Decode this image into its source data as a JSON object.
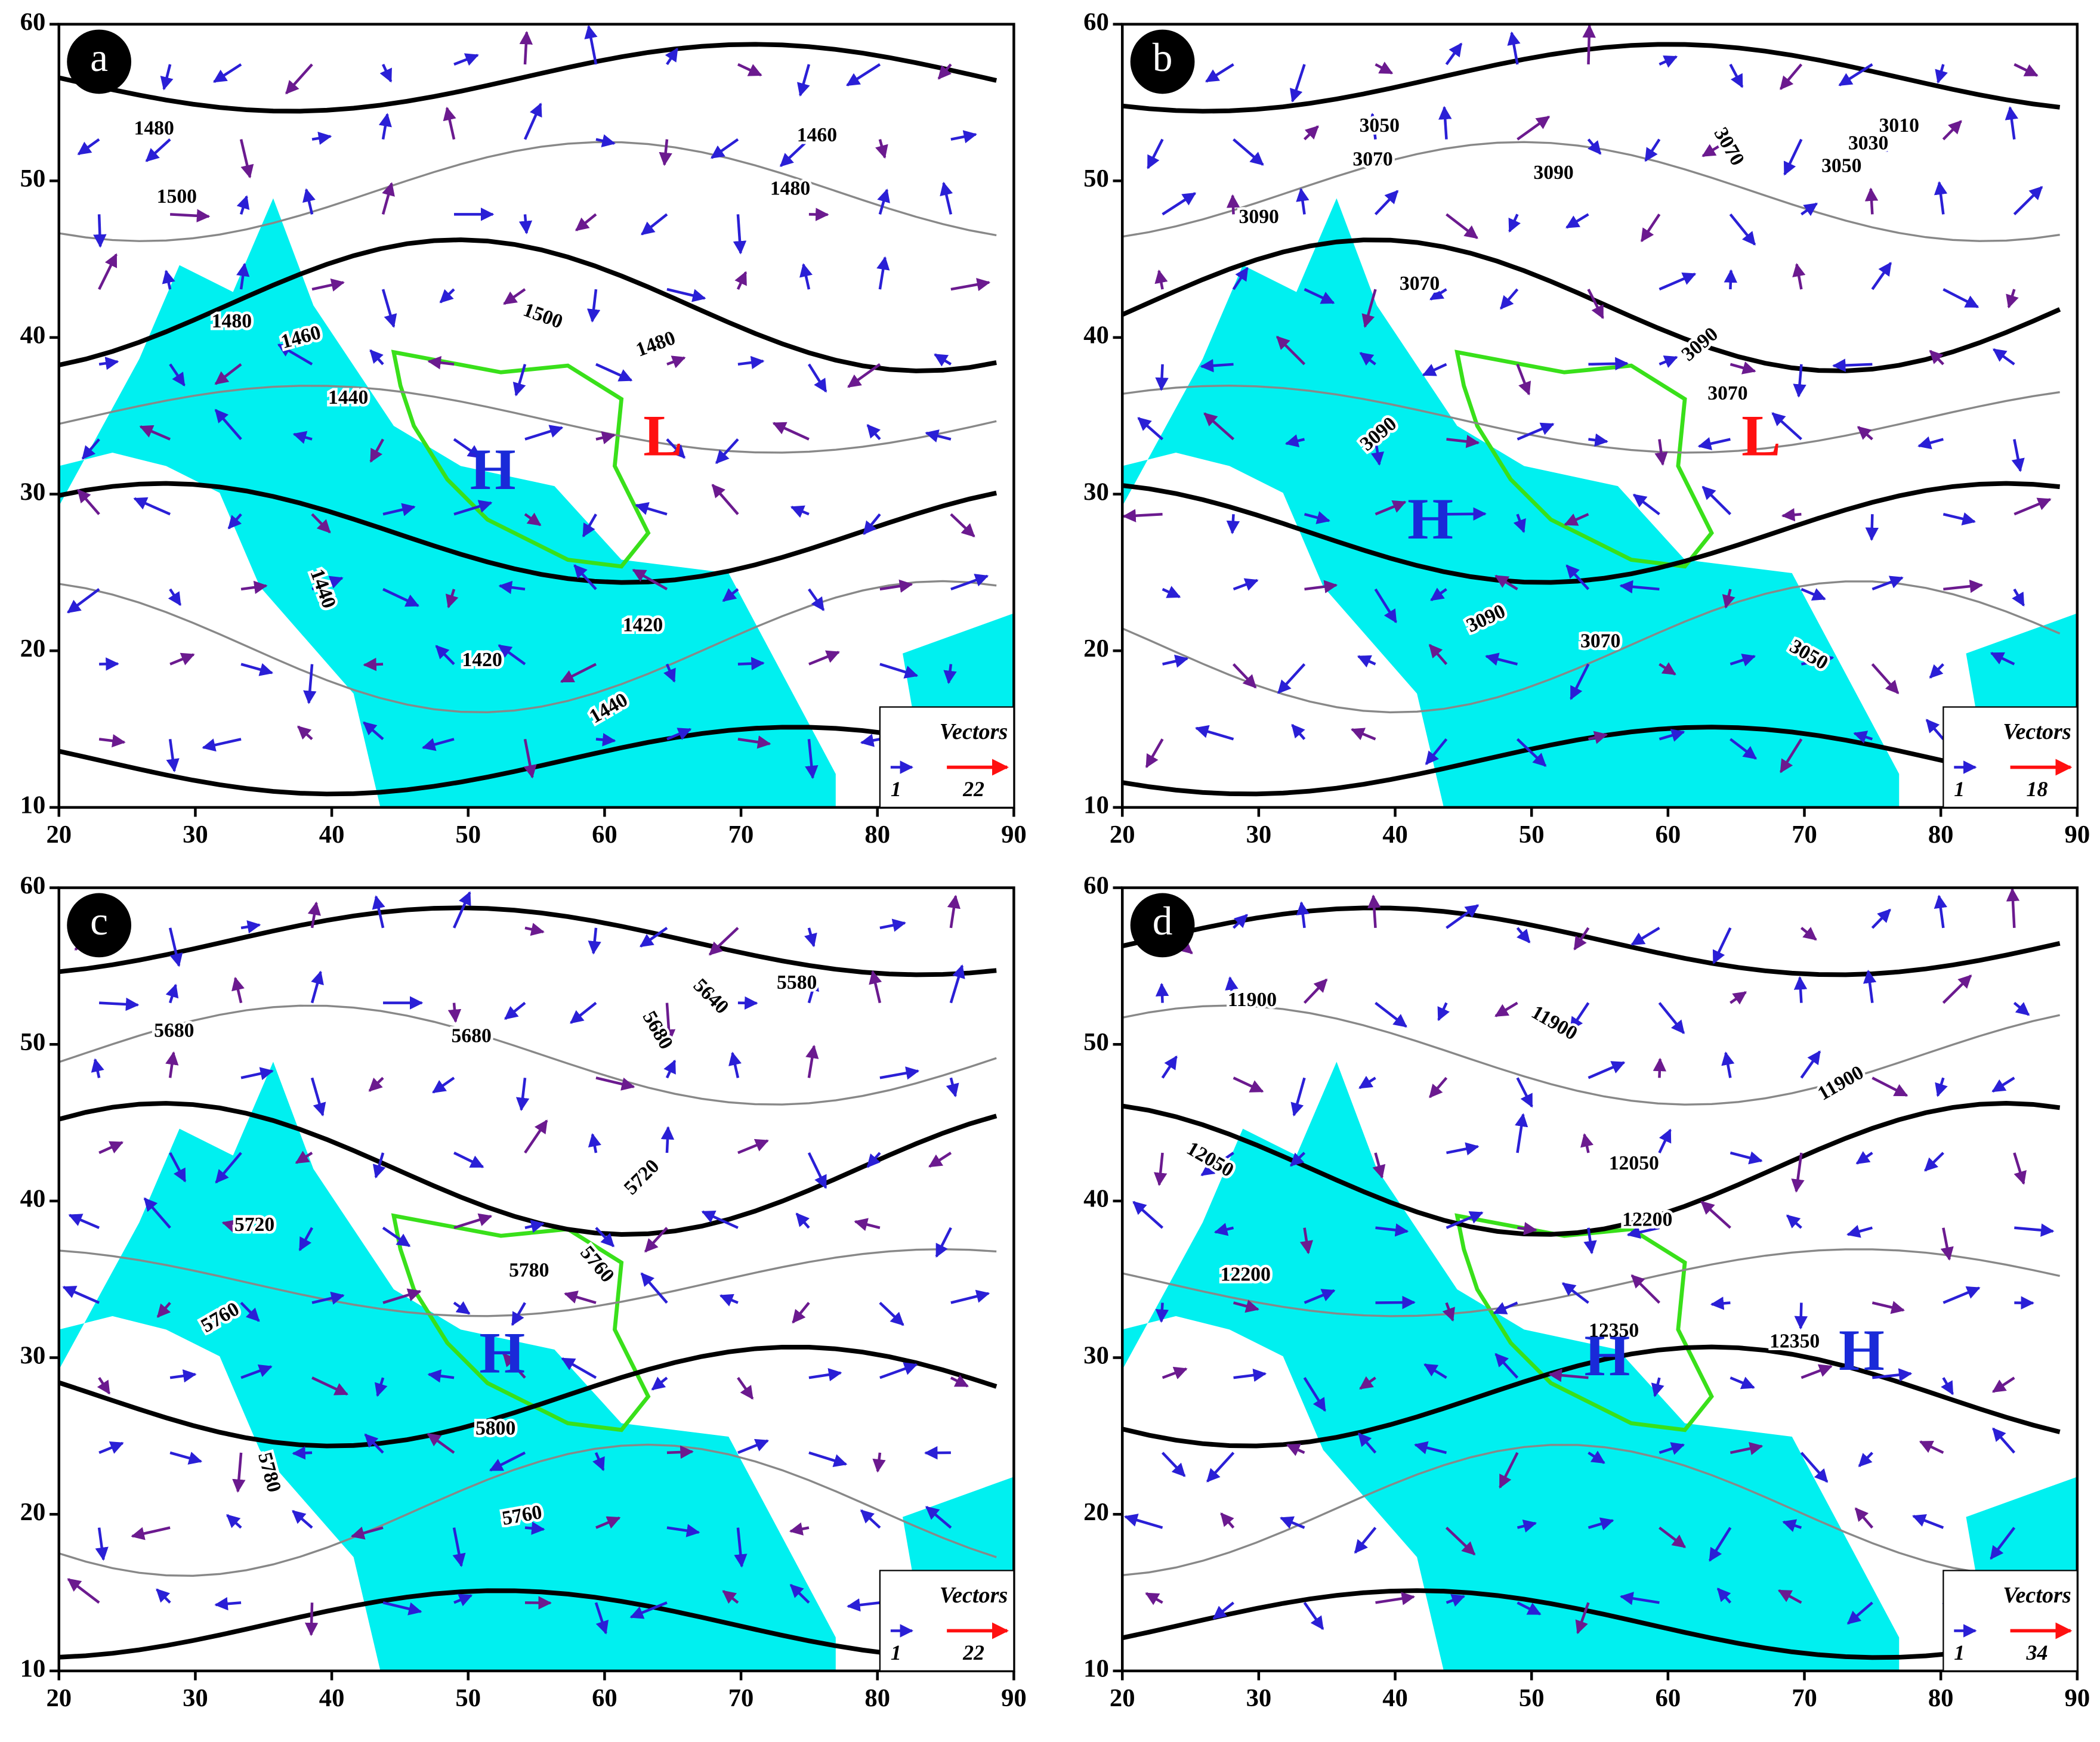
{
  "panels": [
    {
      "label": "a",
      "xlim": [
        20,
        90
      ],
      "ylim": [
        10,
        60
      ],
      "xticks": [
        20,
        30,
        40,
        50,
        60,
        70,
        80,
        90
      ],
      "yticks": [
        10,
        20,
        30,
        40,
        50,
        60
      ],
      "contour_labels": [
        1480,
        1460,
        1500,
        1480,
        1480,
        1500,
        1460,
        1480,
        1440,
        1440,
        1420,
        1420,
        1440
      ],
      "centers": [
        "H",
        "L"
      ],
      "legend": {
        "title": "Vectors",
        "small": 1,
        "large": 22
      }
    },
    {
      "label": "b",
      "xlim": [
        20,
        90
      ],
      "ylim": [
        10,
        60
      ],
      "xticks": [
        20,
        30,
        40,
        50,
        60,
        70,
        80,
        90
      ],
      "yticks": [
        10,
        20,
        30,
        40,
        50,
        60
      ],
      "contour_labels": [
        3050,
        3070,
        3010,
        3030,
        3050,
        3070,
        3090,
        3090,
        3070,
        3090,
        3070,
        3090,
        3090,
        3070,
        3050
      ],
      "centers": [
        "H",
        "L"
      ],
      "legend": {
        "title": "Vectors",
        "small": 1,
        "large": 18
      }
    },
    {
      "label": "c",
      "xlim": [
        20,
        90
      ],
      "ylim": [
        10,
        60
      ],
      "xticks": [
        20,
        30,
        40,
        50,
        60,
        70,
        80,
        90
      ],
      "yticks": [
        10,
        20,
        30,
        40,
        50,
        60
      ],
      "contour_labels": [
        5680,
        5680,
        5680,
        5640,
        5580,
        5720,
        5720,
        5780,
        5760,
        5760,
        5800,
        5780,
        5760
      ],
      "centers": [
        "H"
      ],
      "legend": {
        "title": "Vectors",
        "small": 1,
        "large": 22
      }
    },
    {
      "label": "d",
      "xlim": [
        20,
        90
      ],
      "ylim": [
        10,
        60
      ],
      "xticks": [
        20,
        30,
        40,
        50,
        60,
        70,
        80,
        90
      ],
      "yticks": [
        10,
        20,
        30,
        40,
        50,
        60
      ],
      "contour_labels": [
        11900,
        11900,
        11900,
        12050,
        12050,
        12200,
        12200,
        12350,
        12350
      ],
      "centers": [
        "H",
        "H"
      ],
      "legend": {
        "title": "Vectors",
        "small": 1,
        "large": 34
      }
    }
  ]
}
